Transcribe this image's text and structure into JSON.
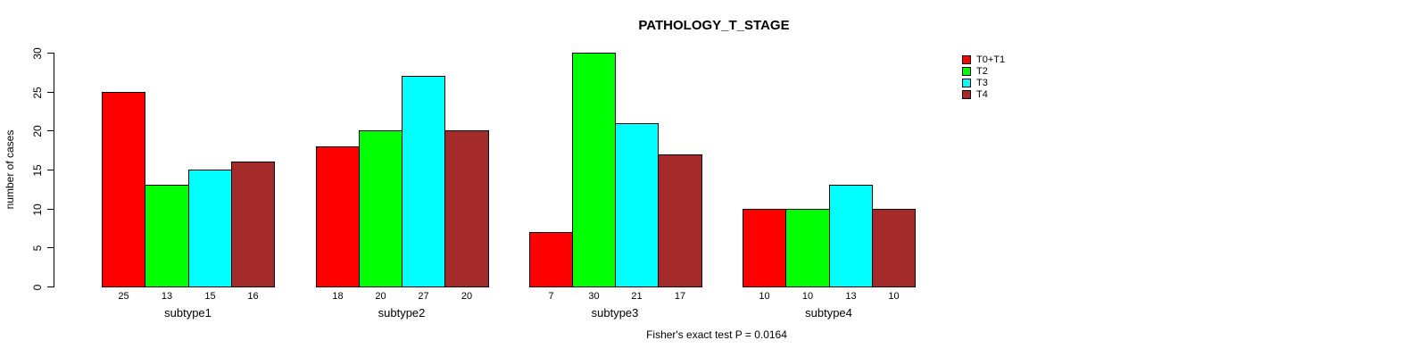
{
  "title": "PATHOLOGY_T_STAGE",
  "ylabel": "number of cases",
  "footer": "Fisher's exact test P = 0.0164",
  "chart_data": {
    "type": "bar",
    "title": "PATHOLOGY_T_STAGE",
    "xlabel": "",
    "ylabel": "number of cases",
    "categories": [
      "subtype1",
      "subtype2",
      "subtype3",
      "subtype4"
    ],
    "series": [
      {
        "name": "T0+T1",
        "color": "#ff0000",
        "values": [
          25,
          18,
          7,
          10
        ]
      },
      {
        "name": "T2",
        "color": "#00ff00",
        "values": [
          13,
          20,
          30,
          10
        ]
      },
      {
        "name": "T3",
        "color": "#00ffff",
        "values": [
          15,
          27,
          21,
          13
        ]
      },
      {
        "name": "T4",
        "color": "#a52a2a",
        "values": [
          16,
          20,
          17,
          10
        ]
      }
    ],
    "bar_value_labels": [
      [
        25,
        13,
        15,
        16
      ],
      [
        18,
        20,
        27,
        20
      ],
      [
        7,
        30,
        21,
        17
      ],
      [
        10,
        10,
        13,
        10
      ]
    ],
    "yticks": [
      0,
      5,
      10,
      15,
      20,
      25,
      30
    ],
    "ylim": [
      0,
      30
    ],
    "grid": false,
    "legend_position": "top-right",
    "legend_border": false,
    "annotation": "Fisher's exact test P = 0.0164"
  }
}
